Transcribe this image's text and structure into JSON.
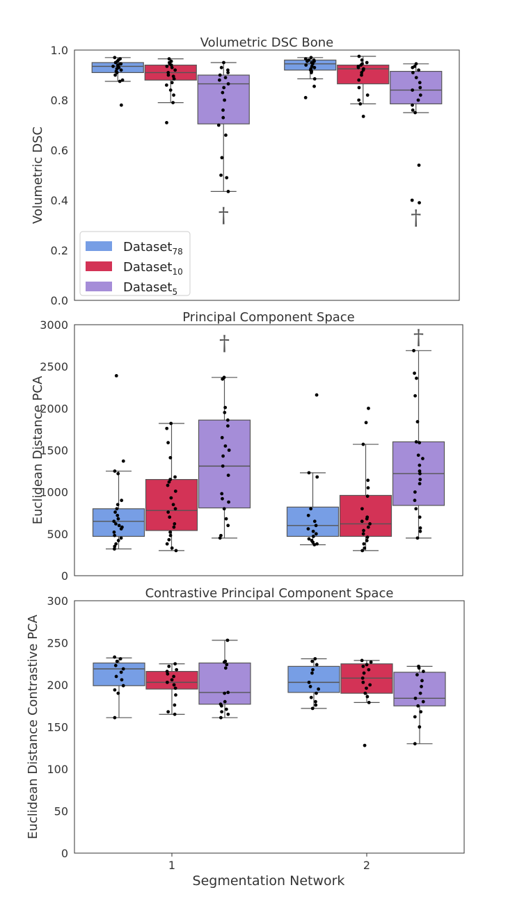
{
  "chart_data": [
    {
      "type": "box",
      "title": "Volumetric DSC Bone",
      "ylabel": "Volumetric DSC",
      "ylim": [
        0.0,
        1.0
      ],
      "yticks": [
        "0.0",
        "0.2",
        "0.4",
        "0.6",
        "0.8",
        "1.0"
      ],
      "legend": {
        "placement": "lower-left",
        "entries": [
          {
            "base": "Dataset",
            "sub": "78"
          },
          {
            "base": "Dataset",
            "sub": "10"
          },
          {
            "base": "Dataset",
            "sub": "5"
          }
        ]
      },
      "daggers": [
        {
          "group": 0,
          "value": 0.34,
          "label": "†"
        },
        {
          "group": 1,
          "value": 0.33,
          "label": "†"
        }
      ],
      "groups": [
        {
          "boxes": [
            {
              "q1": 0.91,
              "median": 0.935,
              "q3": 0.95,
              "wlo": 0.875,
              "whi": 0.97,
              "points": [
                0.97,
                0.965,
                0.96,
                0.955,
                0.95,
                0.945,
                0.945,
                0.94,
                0.94,
                0.935,
                0.935,
                0.93,
                0.93,
                0.925,
                0.92,
                0.915,
                0.91,
                0.9,
                0.88,
                0.875,
                0.78
              ]
            },
            {
              "q1": 0.88,
              "median": 0.91,
              "q3": 0.94,
              "wlo": 0.79,
              "whi": 0.965,
              "points": [
                0.965,
                0.955,
                0.95,
                0.945,
                0.94,
                0.935,
                0.93,
                0.92,
                0.91,
                0.9,
                0.895,
                0.885,
                0.87,
                0.86,
                0.84,
                0.82,
                0.79,
                0.71
              ]
            },
            {
              "q1": 0.705,
              "median": 0.865,
              "q3": 0.9,
              "wlo": 0.435,
              "whi": 0.95,
              "points": [
                0.95,
                0.93,
                0.92,
                0.91,
                0.9,
                0.89,
                0.88,
                0.865,
                0.85,
                0.83,
                0.8,
                0.76,
                0.73,
                0.7,
                0.66,
                0.57,
                0.5,
                0.49,
                0.435
              ]
            }
          ]
        },
        {
          "boxes": [
            {
              "q1": 0.92,
              "median": 0.945,
              "q3": 0.96,
              "wlo": 0.885,
              "whi": 0.97,
              "points": [
                0.97,
                0.965,
                0.96,
                0.96,
                0.955,
                0.955,
                0.95,
                0.945,
                0.94,
                0.935,
                0.93,
                0.925,
                0.92,
                0.915,
                0.91,
                0.885,
                0.855,
                0.81
              ]
            },
            {
              "q1": 0.865,
              "median": 0.925,
              "q3": 0.94,
              "wlo": 0.785,
              "whi": 0.975,
              "points": [
                0.975,
                0.96,
                0.95,
                0.945,
                0.94,
                0.935,
                0.93,
                0.925,
                0.92,
                0.91,
                0.9,
                0.88,
                0.85,
                0.82,
                0.8,
                0.785,
                0.735
              ]
            },
            {
              "q1": 0.785,
              "median": 0.84,
              "q3": 0.915,
              "wlo": 0.75,
              "whi": 0.945,
              "points": [
                0.945,
                0.935,
                0.93,
                0.92,
                0.91,
                0.89,
                0.87,
                0.85,
                0.84,
                0.82,
                0.8,
                0.78,
                0.76,
                0.75,
                0.54,
                0.4,
                0.39
              ]
            }
          ]
        }
      ]
    },
    {
      "type": "box",
      "title": "Principal Component Space",
      "ylabel": "Euclidean Distance PCA",
      "ylim": [
        0,
        3000
      ],
      "yticks": [
        "0",
        "500",
        "1000",
        "1500",
        "2000",
        "2500",
        "3000"
      ],
      "daggers": [
        {
          "group": 0,
          "value": 2780,
          "label": "†"
        },
        {
          "group": 1,
          "value": 2850,
          "label": "†"
        }
      ],
      "groups": [
        {
          "boxes": [
            {
              "q1": 470,
              "median": 650,
              "q3": 800,
              "wlo": 320,
              "whi": 1250,
              "points": [
                2390,
                1370,
                1250,
                1220,
                900,
                850,
                800,
                760,
                720,
                680,
                650,
                620,
                600,
                580,
                560,
                520,
                480,
                450,
                420,
                380,
                350,
                320
              ]
            },
            {
              "q1": 540,
              "median": 780,
              "q3": 1150,
              "wlo": 300,
              "whi": 1820,
              "points": [
                1820,
                1760,
                1590,
                1410,
                1180,
                1150,
                1120,
                1080,
                1010,
                930,
                850,
                800,
                760,
                700,
                620,
                580,
                520,
                480,
                430,
                380,
                330,
                300
              ]
            },
            {
              "q1": 810,
              "median": 1310,
              "q3": 1860,
              "wlo": 450,
              "whi": 2370,
              "points": [
                2370,
                2350,
                2010,
                1950,
                1860,
                1790,
                1650,
                1550,
                1500,
                1430,
                1310,
                1200,
                980,
                920,
                880,
                800,
                680,
                600,
                480,
                450
              ]
            }
          ]
        },
        {
          "boxes": [
            {
              "q1": 470,
              "median": 600,
              "q3": 820,
              "wlo": 370,
              "whi": 1230,
              "points": [
                2160,
                1230,
                1180,
                800,
                720,
                650,
                600,
                560,
                530,
                500,
                470,
                440,
                420,
                400,
                380,
                370
              ]
            },
            {
              "q1": 470,
              "median": 620,
              "q3": 960,
              "wlo": 300,
              "whi": 1570,
              "points": [
                2000,
                1830,
                1570,
                1140,
                1050,
                950,
                800,
                700,
                680,
                650,
                620,
                580,
                540,
                500,
                460,
                420,
                380,
                330,
                300
              ]
            },
            {
              "q1": 840,
              "median": 1220,
              "q3": 1600,
              "wlo": 450,
              "whi": 2690,
              "points": [
                2690,
                2420,
                2360,
                2150,
                1840,
                1600,
                1590,
                1440,
                1400,
                1320,
                1250,
                1220,
                1150,
                1100,
                1000,
                900,
                800,
                700,
                570,
                530,
                450
              ]
            }
          ]
        }
      ]
    },
    {
      "type": "box",
      "title": "Contrastive Principal Component Space",
      "ylabel": "Euclidean Distance Contrastive PCA",
      "xlabel": "Segmentation Network",
      "categories": [
        "1",
        "2"
      ],
      "ylim": [
        0,
        300
      ],
      "yticks": [
        "0",
        "50",
        "100",
        "150",
        "200",
        "250",
        "300"
      ],
      "groups": [
        {
          "boxes": [
            {
              "q1": 199,
              "median": 219,
              "q3": 226,
              "wlo": 161,
              "whi": 232,
              "points": [
                233,
                231,
                228,
                223,
                219,
                215,
                210,
                206,
                199,
                194,
                190,
                161
              ]
            },
            {
              "q1": 195,
              "median": 203,
              "q3": 216,
              "wlo": 165,
              "whi": 225,
              "points": [
                225,
                222,
                218,
                216,
                213,
                210,
                206,
                203,
                200,
                196,
                188,
                176,
                168,
                165
              ]
            },
            {
              "q1": 177,
              "median": 191,
              "q3": 226,
              "wlo": 161,
              "whi": 253,
              "points": [
                253,
                228,
                227,
                224,
                220,
                191,
                190,
                180,
                177,
                175,
                171,
                168,
                165,
                161
              ]
            }
          ]
        },
        {
          "boxes": [
            {
              "q1": 191,
              "median": 203,
              "q3": 222,
              "wlo": 172,
              "whi": 231,
              "points": [
                231,
                228,
                224,
                218,
                214,
                203,
                198,
                195,
                190,
                185,
                180,
                176,
                172
              ]
            },
            {
              "q1": 190,
              "median": 208,
              "q3": 225,
              "wlo": 179,
              "whi": 229,
              "points": [
                229,
                227,
                224,
                222,
                218,
                214,
                208,
                203,
                200,
                196,
                190,
                186,
                179,
                128
              ]
            },
            {
              "q1": 175,
              "median": 184,
              "q3": 215,
              "wlo": 130,
              "whi": 222,
              "points": [
                222,
                220,
                216,
                212,
                205,
                198,
                190,
                184,
                180,
                175,
                168,
                162,
                150,
                130
              ]
            }
          ]
        }
      ]
    }
  ],
  "colors": {
    "series": [
      "#779ee5",
      "#d33356",
      "#a58dd8"
    ],
    "box_edge": "#555555",
    "point": "#000000",
    "axis": "#333333"
  }
}
